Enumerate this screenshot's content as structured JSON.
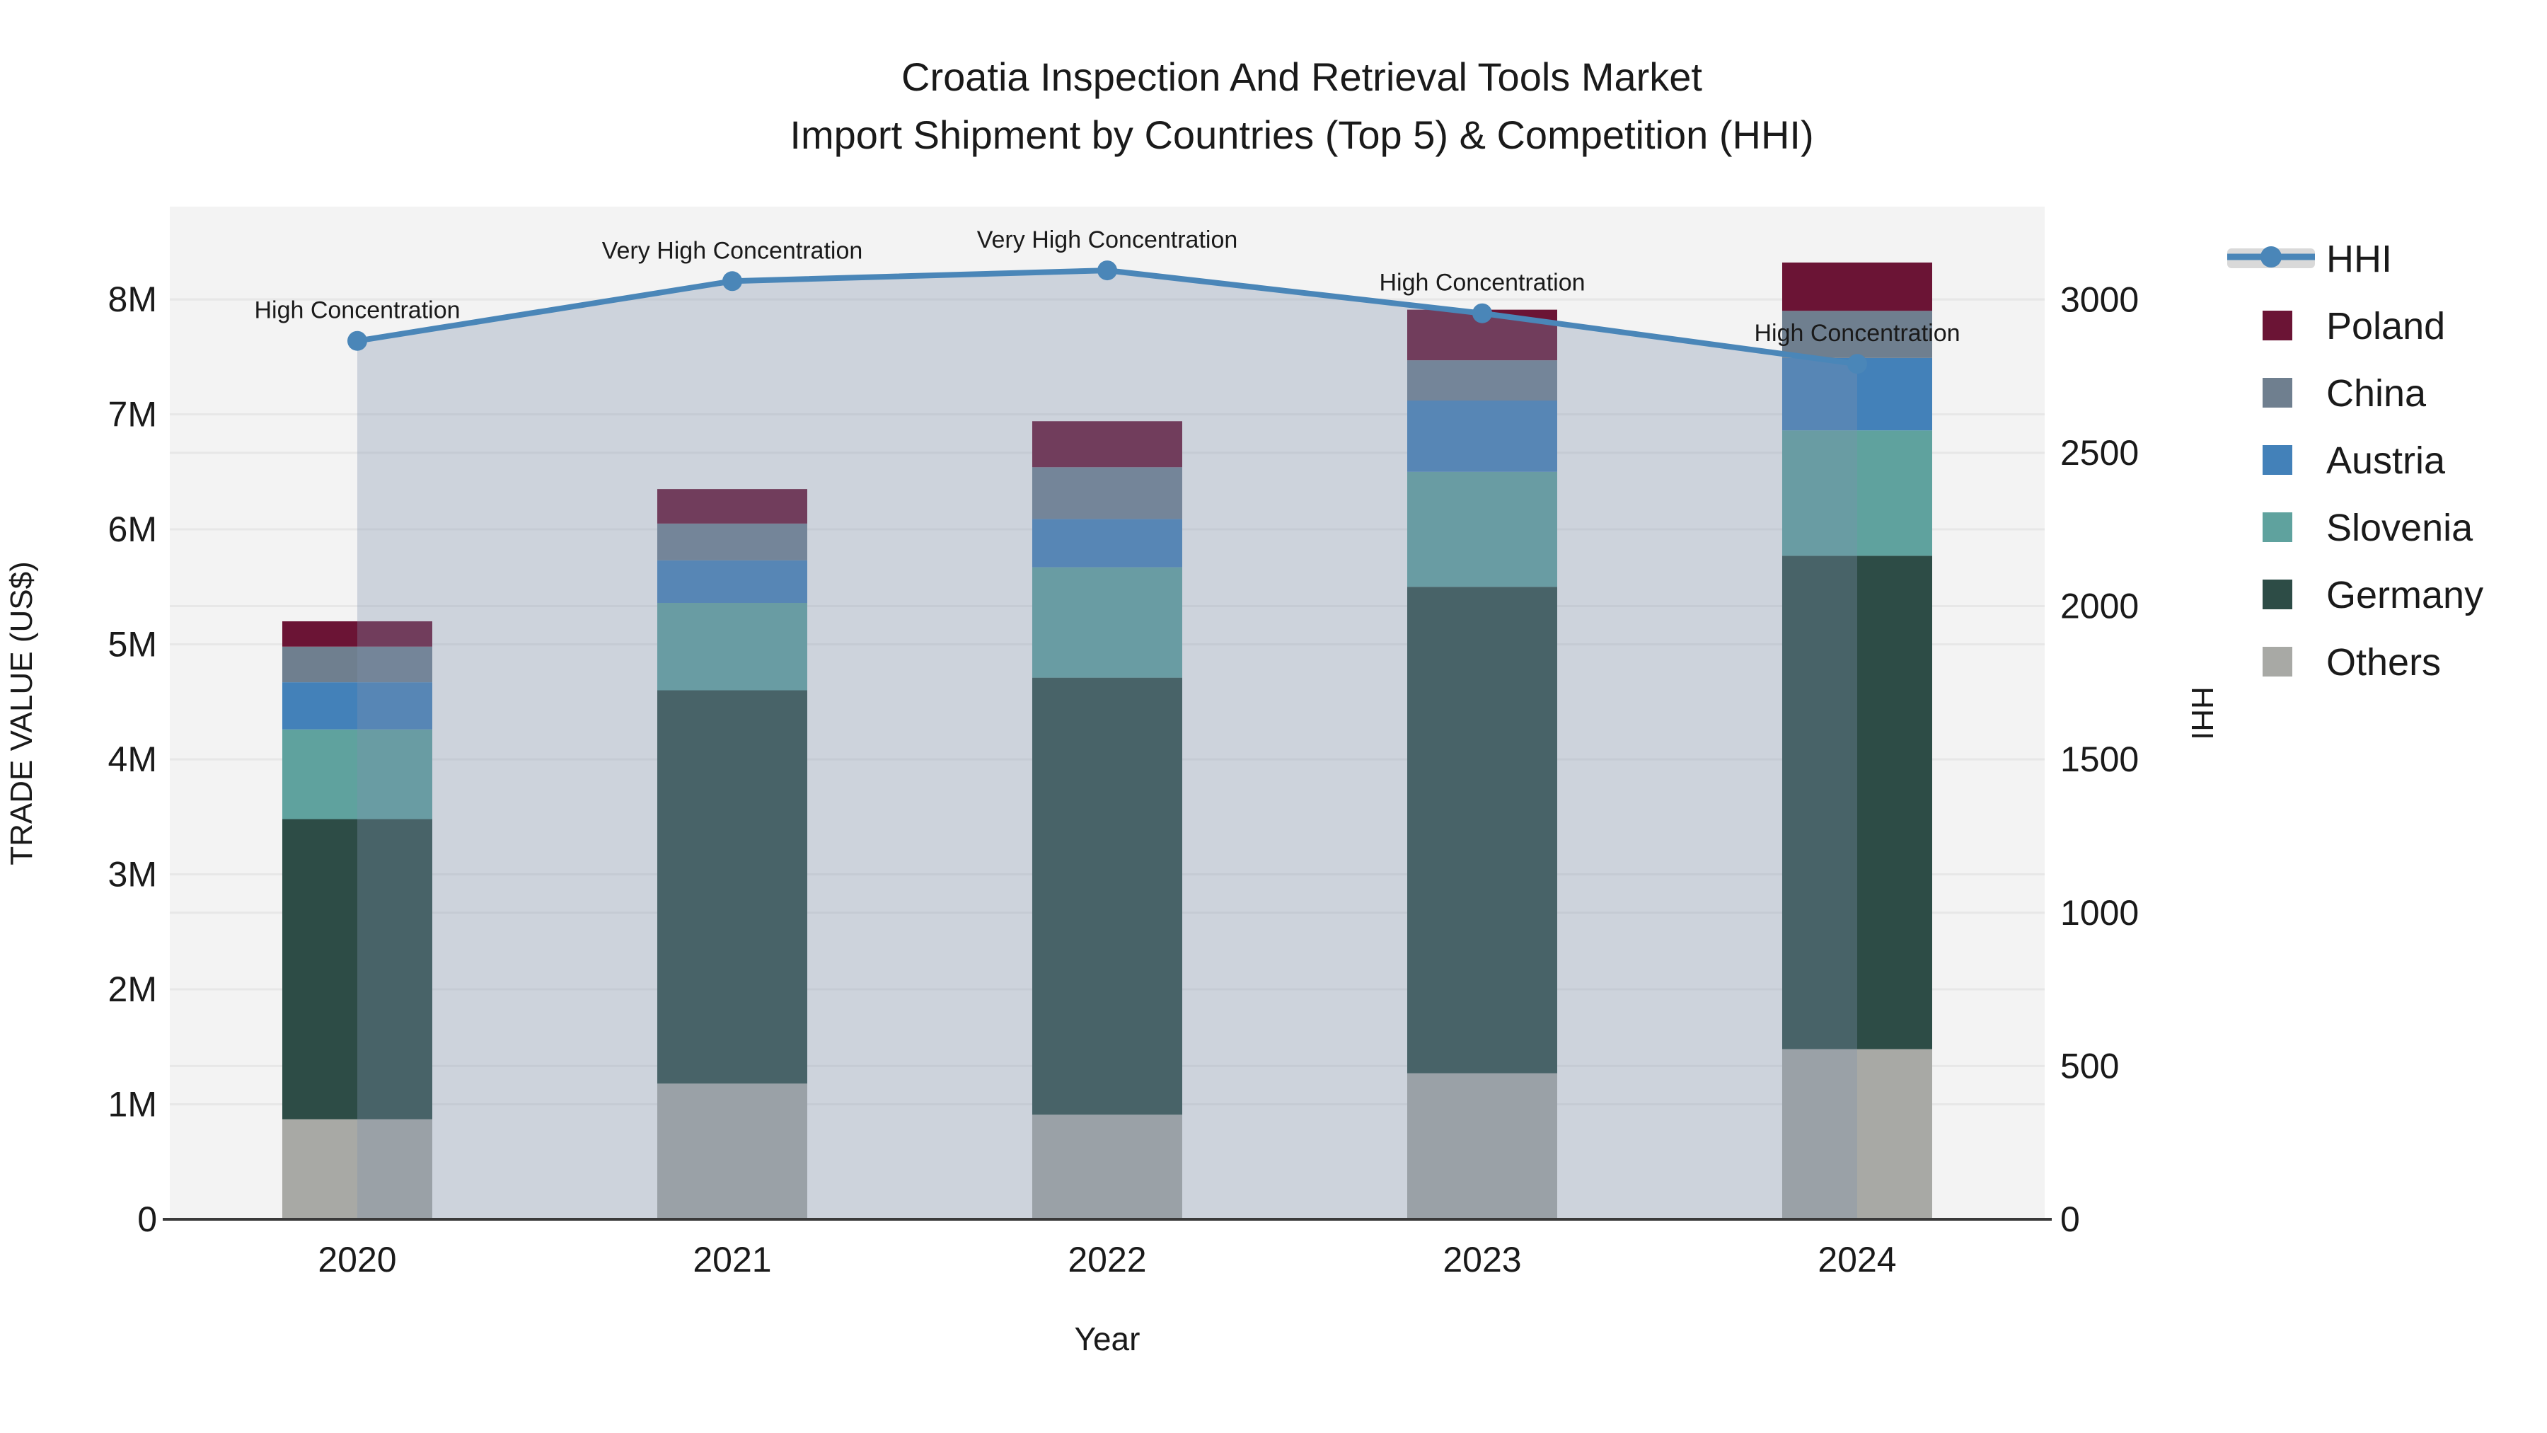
{
  "title": {
    "line1": "Croatia Inspection And Retrieval Tools Market",
    "line2": "Import Shipment by Countries (Top 5) & Competition (HHI)"
  },
  "axes": {
    "x_title": "Year",
    "y_left_title": "TRADE VALUE (US$)",
    "y_right_title": "HHI",
    "y_left_ticks": [
      "0",
      "1M",
      "2M",
      "3M",
      "4M",
      "5M",
      "6M",
      "7M",
      "8M"
    ],
    "y_right_ticks": [
      "0",
      "500",
      "1000",
      "1500",
      "2000",
      "2500",
      "3000"
    ]
  },
  "legend": {
    "items": [
      "HHI",
      "Poland",
      "China",
      "Austria",
      "Slovenia",
      "Germany",
      "Others"
    ]
  },
  "colors": {
    "poland": "#6b1435",
    "china": "#6f7f8f",
    "austria": "#4381b9",
    "slovenia": "#5fa29e",
    "germany": "#2d4c46",
    "others": "#a8a9a5",
    "hhi_line": "#4a86b8",
    "area_fill": "rgba(129,147,174,0.33)",
    "plot_bg": "#f3f3f3",
    "gridline": "#e7e7e7",
    "axis_line": "#3a3a3a",
    "legend_band": "#d9d9d9"
  },
  "chart_data": {
    "type": "bar",
    "subtype": "stacked-bars-with-line-overlay",
    "categories": [
      "2020",
      "2021",
      "2022",
      "2023",
      "2024"
    ],
    "unit": "US$ millions (left axis), HHI index (right axis)",
    "series": [
      {
        "name": "Others",
        "color": "#a8a9a5",
        "values": [
          0.87,
          1.18,
          0.91,
          1.27,
          1.48
        ]
      },
      {
        "name": "Germany",
        "color": "#2d4c46",
        "values": [
          2.61,
          3.42,
          3.8,
          4.23,
          4.29
        ]
      },
      {
        "name": "Slovenia",
        "color": "#5fa29e",
        "values": [
          0.78,
          0.76,
          0.96,
          1.0,
          1.09
        ]
      },
      {
        "name": "Austria",
        "color": "#4381b9",
        "values": [
          0.41,
          0.37,
          0.42,
          0.62,
          0.63
        ]
      },
      {
        "name": "China",
        "color": "#6f7f8f",
        "values": [
          0.31,
          0.32,
          0.45,
          0.35,
          0.41
        ]
      },
      {
        "name": "Poland",
        "color": "#6b1435",
        "values": [
          0.22,
          0.3,
          0.4,
          0.44,
          0.42
        ]
      }
    ],
    "bar_totals": [
      5.2,
      6.35,
      6.94,
      7.91,
      8.32
    ],
    "line_series": {
      "name": "HHI",
      "axis": "right",
      "color": "#4a86b8",
      "values": [
        2865,
        3060,
        3095,
        2955,
        2790
      ],
      "annotations": [
        "High Concentration",
        "Very High Concentration",
        "Very High Concentration",
        "High Concentration",
        "High Concentration"
      ],
      "area_fill_to_zero": true
    },
    "left_axis": {
      "label": "TRADE VALUE (US$)",
      "min": 0,
      "max": 8000000,
      "tick_step": 1000000
    },
    "right_axis": {
      "label": "HHI",
      "min": 0,
      "max": 3000,
      "tick_step": 500
    },
    "grid": true,
    "legend_position": "right"
  }
}
